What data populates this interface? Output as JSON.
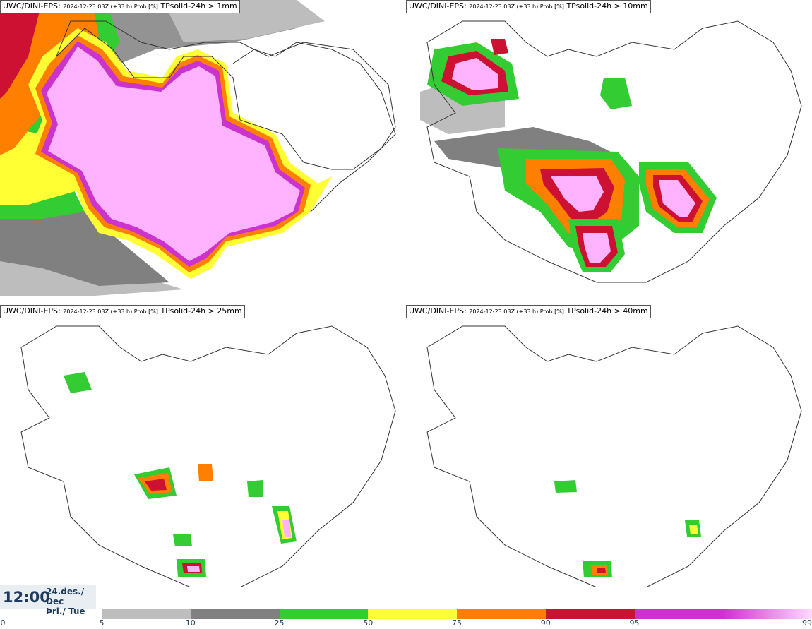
{
  "panels": [
    {
      "source": "UWC/DINI-EPS",
      "run": "2024-12-23 03Z (+33 h) Prob [%]",
      "field": "TPsolid-24h > 1mm"
    },
    {
      "source": "UWC/DINI-EPS",
      "run": "2024-12-23 03Z (+33 h) Prob [%]",
      "field": "TPsolid-24h > 10mm"
    },
    {
      "source": "UWC/DINI-EPS",
      "run": "2024-12-23 03Z (+33 h) Prob [%]",
      "field": "TPsolid-24h > 25mm"
    },
    {
      "source": "UWC/DINI-EPS",
      "run": "2024-12-23 03Z (+33 h) Prob [%]",
      "field": "TPsolid-24h > 40mm"
    }
  ],
  "valid_time": {
    "time": "12:00",
    "date_line1": "24.des./ Dec",
    "date_line2": "Þri./ Tue"
  },
  "legend": {
    "ticks": [
      "0",
      "5",
      "10",
      "25",
      "50",
      "75",
      "90",
      "95",
      "99"
    ],
    "colors": [
      "#bdbdbd",
      "#808080",
      "#33cc33",
      "#ffff33",
      "#ff7f00",
      "#cc1133",
      "#cc33cc",
      "#ffb3ff"
    ]
  }
}
